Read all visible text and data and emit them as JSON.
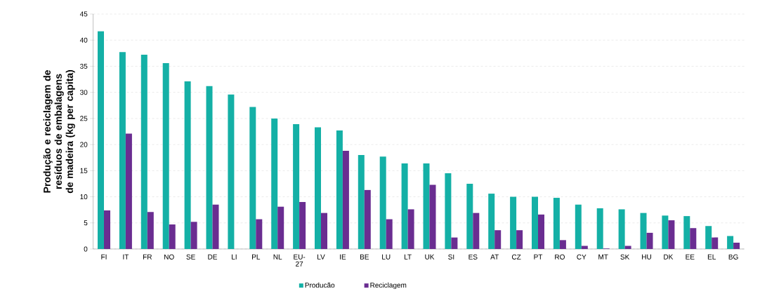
{
  "chart_data": {
    "type": "bar",
    "ylabel": "Produção e reciclagem de resíduos de embalagens de madeira (kg per capita)",
    "categories": [
      "FI",
      "IT",
      "FR",
      "NO",
      "SE",
      "DE",
      "LI",
      "PL",
      "NL",
      "EU-27",
      "LV",
      "IE",
      "BE",
      "LU",
      "LT",
      "UK",
      "SI",
      "ES",
      "AT",
      "CZ",
      "PT",
      "RO",
      "CY",
      "MT",
      "SK",
      "HU",
      "DK",
      "EE",
      "EL",
      "BG"
    ],
    "series": [
      {
        "name": "Producão",
        "color": "#14b0a6",
        "values": [
          41.7,
          37.7,
          37.2,
          35.6,
          32.1,
          31.2,
          29.6,
          27.2,
          25.0,
          23.9,
          23.3,
          22.7,
          18.0,
          17.7,
          16.4,
          16.4,
          14.5,
          12.5,
          10.6,
          10.0,
          10.0,
          9.8,
          8.5,
          7.8,
          7.6,
          6.9,
          6.4,
          6.3,
          4.4,
          2.5
        ]
      },
      {
        "name": "Reciclagem",
        "color": "#6a2d91",
        "values": [
          7.4,
          22.1,
          7.1,
          4.7,
          5.2,
          8.5,
          0,
          5.7,
          8.1,
          9.0,
          6.9,
          18.8,
          11.3,
          5.7,
          7.6,
          12.3,
          2.2,
          6.9,
          3.6,
          3.6,
          6.6,
          1.7,
          0.6,
          0.1,
          0.6,
          3.1,
          5.5,
          4.0,
          2.2,
          1.2
        ]
      }
    ],
    "ylim": [
      0,
      45
    ],
    "yticks": [
      0,
      5,
      10,
      15,
      20,
      25,
      30,
      35,
      40,
      45
    ],
    "grid": "y",
    "legend": "bottom"
  }
}
